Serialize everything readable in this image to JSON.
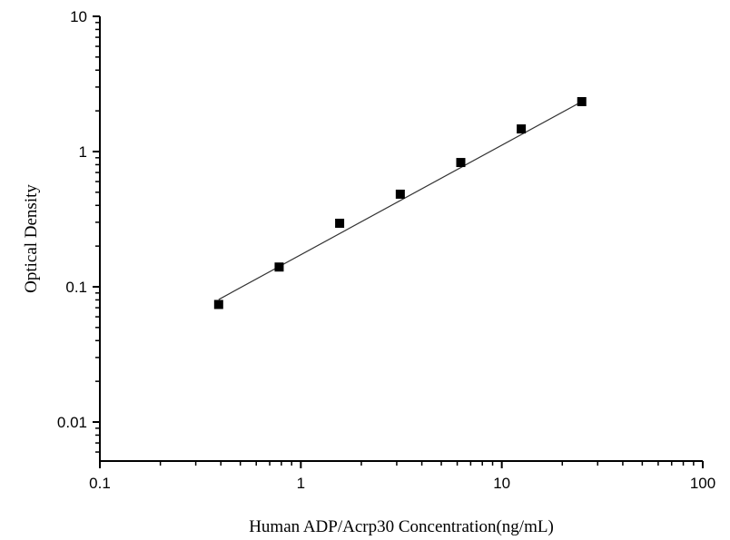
{
  "chart_data": {
    "type": "scatter",
    "title": "",
    "xlabel": "Human ADP/Acrp30 Concentration(ng/mL)",
    "ylabel": "Optical Density",
    "x_scale": "log",
    "y_scale": "log",
    "xlim": [
      0.1,
      100
    ],
    "ylim": [
      0.005,
      10
    ],
    "x_ticks": [
      "0.1",
      "1",
      "10",
      "100"
    ],
    "y_ticks": [
      "0.01",
      "0.1",
      "1",
      "10"
    ],
    "grid": false,
    "marker": "square",
    "marker_color": "#000000",
    "line_color": "#333333",
    "points": {
      "x": [
        0.39,
        0.78,
        1.56,
        3.125,
        6.25,
        12.5,
        25
      ],
      "y": [
        0.074,
        0.14,
        0.295,
        0.484,
        0.83,
        1.47,
        2.34
      ]
    },
    "fit_line": {
      "x": [
        0.39,
        25
      ],
      "y": [
        0.0805,
        2.34
      ]
    }
  }
}
